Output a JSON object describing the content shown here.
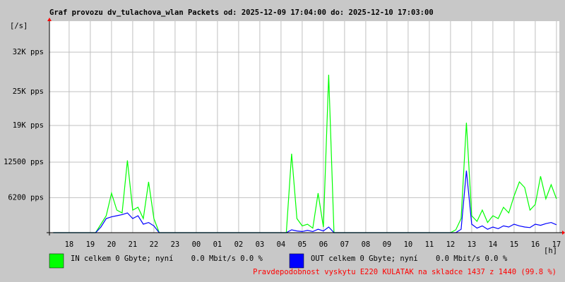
{
  "chart_data": {
    "type": "line",
    "title": "Graf provozu dv_tulachova_wlan Packets od: 2025-12-09 17:04:00 do: 2025-12-10 17:03:00",
    "y_unit_label": "[/s]",
    "x_unit_label": "[h]",
    "x": [
      17.25,
      17.5,
      17.75,
      18,
      18.25,
      18.5,
      18.75,
      19,
      19.25,
      19.5,
      19.75,
      20,
      20.25,
      20.5,
      20.75,
      21,
      21.25,
      21.5,
      21.75,
      22,
      22.25,
      22.5,
      22.75,
      23,
      23.25,
      23.5,
      23.75,
      24,
      24.25,
      24.5,
      24.75,
      25,
      25.25,
      25.5,
      25.75,
      26,
      26.25,
      26.5,
      26.75,
      27,
      27.25,
      27.5,
      27.75,
      28,
      28.25,
      28.5,
      28.75,
      29,
      29.25,
      29.5,
      29.75,
      30,
      30.25,
      30.5,
      30.75,
      31,
      31.25,
      31.5,
      31.75,
      32,
      32.25,
      32.5,
      32.75,
      33,
      33.25,
      33.5,
      33.75,
      34,
      34.25,
      34.5,
      34.75,
      35,
      35.25,
      35.5,
      35.75,
      36,
      36.25,
      36.5,
      36.75,
      37,
      37.25,
      37.5,
      37.75,
      38,
      38.25,
      38.5,
      38.75,
      39,
      39.25,
      39.5,
      39.75,
      40,
      40.25,
      40.5,
      40.75,
      41
    ],
    "series": [
      {
        "name": "IN celkem 0 Gbyte; nyní    0.0 Mbit/s 0.0 %",
        "color": "#00ff00",
        "values": [
          0,
          0,
          0,
          0,
          0,
          0,
          0,
          0,
          0,
          1500,
          3000,
          7000,
          4000,
          3500,
          12800,
          4000,
          4500,
          2500,
          9000,
          2500,
          0,
          0,
          0,
          0,
          0,
          0,
          0,
          0,
          0,
          0,
          0,
          0,
          0,
          0,
          0,
          0,
          0,
          0,
          0,
          0,
          0,
          0,
          0,
          0,
          0,
          14000,
          2500,
          1200,
          1500,
          800,
          7000,
          1000,
          28000,
          0,
          0,
          0,
          0,
          0,
          0,
          0,
          0,
          0,
          0,
          0,
          0,
          0,
          0,
          0,
          0,
          0,
          0,
          0,
          0,
          0,
          0,
          0,
          500,
          2500,
          19500,
          3000,
          2000,
          4000,
          1800,
          3000,
          2500,
          4500,
          3500,
          6500,
          9000,
          8000,
          4000,
          5000,
          10000,
          6000,
          8500,
          6000
        ]
      },
      {
        "name": "OUT celkem 0 Gbyte; nyní    0.0 Mbit/s 0.0 %",
        "color": "#0000ff",
        "values": [
          0,
          0,
          0,
          0,
          0,
          0,
          0,
          0,
          0,
          1000,
          2500,
          2800,
          3000,
          3200,
          3500,
          2500,
          3000,
          1500,
          1800,
          1200,
          0,
          0,
          0,
          0,
          0,
          0,
          0,
          0,
          0,
          0,
          0,
          0,
          0,
          0,
          0,
          0,
          0,
          0,
          0,
          0,
          0,
          0,
          0,
          0,
          0,
          500,
          300,
          200,
          400,
          200,
          600,
          300,
          1000,
          0,
          0,
          0,
          0,
          0,
          0,
          0,
          0,
          0,
          0,
          0,
          0,
          0,
          0,
          0,
          0,
          0,
          0,
          0,
          0,
          0,
          0,
          0,
          0,
          600,
          11000,
          1500,
          800,
          1200,
          600,
          1000,
          700,
          1200,
          1000,
          1500,
          1200,
          1000,
          900,
          1500,
          1300,
          1600,
          1800,
          1400
        ]
      }
    ],
    "xlim": [
      17.07,
      41.07
    ],
    "xticks": [
      18,
      19,
      20,
      21,
      22,
      23,
      {
        "value": 24,
        "label": "00"
      },
      {
        "value": 25,
        "label": "01"
      },
      {
        "value": 26,
        "label": "02"
      },
      {
        "value": 27,
        "label": "03"
      },
      {
        "value": 28,
        "label": "04"
      },
      {
        "value": 29,
        "label": "05"
      },
      {
        "value": 30,
        "label": "06"
      },
      {
        "value": 31,
        "label": "07"
      },
      {
        "value": 32,
        "label": "08"
      },
      {
        "value": 33,
        "label": "09"
      },
      {
        "value": 34,
        "label": "10"
      },
      {
        "value": 35,
        "label": "11"
      },
      {
        "value": 36,
        "label": "12"
      },
      {
        "value": 37,
        "label": "13"
      },
      {
        "value": 38,
        "label": "14"
      },
      {
        "value": 39,
        "label": "15"
      },
      {
        "value": 40,
        "label": "16"
      },
      {
        "value": 41,
        "label": "17"
      }
    ],
    "ylim": [
      0,
      37500
    ],
    "yticks": [
      {
        "value": 6200,
        "label": "6200 pps"
      },
      {
        "value": 12500,
        "label": "12500 pps"
      },
      {
        "value": 19000,
        "label": "19K pps"
      },
      {
        "value": 25000,
        "label": "25K pps"
      },
      {
        "value": 32000,
        "label": "32K pps"
      }
    ],
    "grid": true,
    "footer_note": "Pravdepodobnost vyskytu E220 KULATAK na skladce 1437 z 1440 (99.8 %)"
  }
}
